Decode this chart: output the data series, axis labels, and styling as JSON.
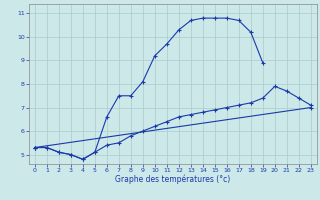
{
  "xlabel": "Graphe des températures (°c)",
  "background_color": "#cce8e8",
  "grid_color": "#aacccc",
  "line_color": "#1a3aaa",
  "xlim": [
    -0.5,
    23.5
  ],
  "ylim": [
    4.6,
    11.4
  ],
  "xticks": [
    0,
    1,
    2,
    3,
    4,
    5,
    6,
    7,
    8,
    9,
    10,
    11,
    12,
    13,
    14,
    15,
    16,
    17,
    18,
    19,
    20,
    21,
    22,
    23
  ],
  "yticks": [
    5,
    6,
    7,
    8,
    9,
    10,
    11
  ],
  "curve1_x": [
    0,
    1,
    2,
    3,
    4,
    5,
    6,
    7,
    8,
    9,
    10,
    11,
    12,
    13,
    14,
    15,
    16,
    17,
    18,
    19
  ],
  "curve1_y": [
    5.3,
    5.3,
    5.1,
    5.0,
    4.8,
    5.1,
    6.6,
    7.5,
    7.5,
    8.1,
    9.2,
    9.7,
    10.3,
    10.7,
    10.8,
    10.8,
    10.8,
    10.7,
    10.2,
    8.9
  ],
  "curve2_x": [
    0,
    1,
    2,
    3,
    4,
    5,
    6,
    7,
    8,
    9,
    10,
    11,
    12,
    13,
    14,
    15,
    16,
    17,
    18,
    19,
    20,
    21,
    22,
    23
  ],
  "curve2_y": [
    5.3,
    5.3,
    5.1,
    5.0,
    4.8,
    5.1,
    5.4,
    5.5,
    5.8,
    6.0,
    6.2,
    6.4,
    6.6,
    6.7,
    6.8,
    6.9,
    7.0,
    7.1,
    7.2,
    7.4,
    7.9,
    7.7,
    7.4,
    7.1
  ],
  "curve3_x": [
    0,
    23
  ],
  "curve3_y": [
    5.3,
    7.0
  ]
}
